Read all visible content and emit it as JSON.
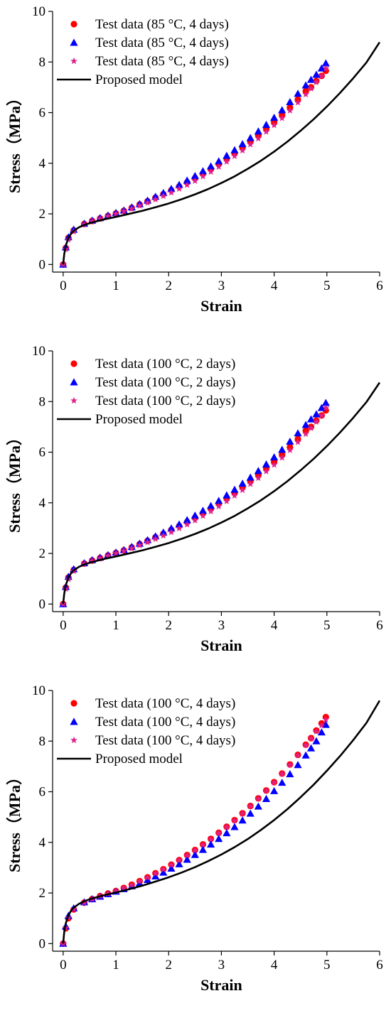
{
  "chart_data": [
    {
      "type": "scatter",
      "xlabel": "Strain",
      "ylabel": "Stress（MPa）",
      "xlim": [
        -0.2,
        6
      ],
      "ylim": [
        -0.3,
        10
      ],
      "xticks": [
        "0",
        "1",
        "2",
        "3",
        "4",
        "5",
        "6"
      ],
      "yticks": [
        "0",
        "2",
        "4",
        "6",
        "8",
        "10"
      ],
      "legend_position": "top-left",
      "series": [
        {
          "name": "Test data (85 °C, 4 days)",
          "marker": "circle",
          "color": "#ff0000",
          "x": [
            0,
            0.05,
            0.1,
            0.2,
            0.4,
            0.55,
            0.7,
            0.85,
            1.0,
            1.15,
            1.3,
            1.45,
            1.6,
            1.75,
            1.9,
            2.05,
            2.2,
            2.35,
            2.5,
            2.65,
            2.8,
            2.95,
            3.1,
            3.25,
            3.4,
            3.55,
            3.7,
            3.85,
            4.0,
            4.15,
            4.3,
            4.45,
            4.6,
            4.7,
            4.8,
            4.9,
            4.98
          ],
          "y": [
            0,
            0.65,
            1.05,
            1.35,
            1.6,
            1.72,
            1.82,
            1.92,
            2.02,
            2.12,
            2.24,
            2.37,
            2.5,
            2.64,
            2.78,
            2.93,
            3.08,
            3.24,
            3.41,
            3.59,
            3.78,
            3.98,
            4.18,
            4.4,
            4.62,
            4.86,
            5.1,
            5.36,
            5.62,
            5.9,
            6.2,
            6.52,
            6.85,
            7.0,
            7.25,
            7.45,
            7.65
          ]
        },
        {
          "name": "Test data (85 °C, 4 days)",
          "marker": "triangle",
          "color": "#0000ff",
          "x": [
            0,
            0.05,
            0.1,
            0.2,
            0.4,
            0.55,
            0.7,
            0.85,
            1.0,
            1.15,
            1.3,
            1.45,
            1.6,
            1.75,
            1.9,
            2.05,
            2.2,
            2.35,
            2.5,
            2.65,
            2.8,
            2.95,
            3.1,
            3.25,
            3.4,
            3.55,
            3.7,
            3.85,
            4.0,
            4.15,
            4.3,
            4.45,
            4.6,
            4.7,
            4.8,
            4.9,
            4.98
          ],
          "y": [
            0,
            0.68,
            1.08,
            1.38,
            1.62,
            1.74,
            1.84,
            1.94,
            2.04,
            2.14,
            2.26,
            2.39,
            2.53,
            2.68,
            2.83,
            2.99,
            3.15,
            3.32,
            3.5,
            3.69,
            3.88,
            4.08,
            4.3,
            4.52,
            4.76,
            5.0,
            5.26,
            5.52,
            5.8,
            6.1,
            6.42,
            6.75,
            7.08,
            7.3,
            7.5,
            7.75,
            7.95
          ]
        },
        {
          "name": "Test data (85 °C, 4 days)",
          "marker": "star",
          "color": "#e0208a",
          "x": [
            0,
            0.05,
            0.1,
            0.2,
            0.4,
            0.55,
            0.7,
            0.85,
            1.0,
            1.15,
            1.3,
            1.45,
            1.6,
            1.75,
            1.9,
            2.05,
            2.2,
            2.35,
            2.5,
            2.65,
            2.8,
            2.95,
            3.1,
            3.25,
            3.4,
            3.55,
            3.7,
            3.85,
            4.0,
            4.15,
            4.3,
            4.45,
            4.6,
            4.7,
            4.8,
            4.9,
            4.98
          ],
          "y": [
            0,
            0.6,
            0.98,
            1.3,
            1.58,
            1.7,
            1.8,
            1.9,
            2.0,
            2.1,
            2.2,
            2.32,
            2.44,
            2.57,
            2.7,
            2.84,
            2.99,
            3.14,
            3.3,
            3.48,
            3.66,
            3.86,
            4.06,
            4.28,
            4.5,
            4.74,
            4.98,
            5.24,
            5.5,
            5.78,
            6.08,
            6.4,
            6.72,
            6.95,
            7.2,
            7.45,
            7.75
          ]
        },
        {
          "name": "Proposed model",
          "marker": "line",
          "color": "#000000",
          "x": [
            0,
            0.02,
            0.05,
            0.1,
            0.15,
            0.2,
            0.3,
            0.4,
            0.5,
            0.75,
            1.0,
            1.25,
            1.5,
            1.75,
            2.0,
            2.25,
            2.5,
            2.75,
            3.0,
            3.25,
            3.5,
            3.75,
            4.0,
            4.25,
            4.5,
            4.75,
            5.0,
            5.25,
            5.5,
            5.75,
            6.0
          ],
          "y": [
            0,
            0.4,
            0.75,
            1.05,
            1.22,
            1.33,
            1.47,
            1.56,
            1.63,
            1.77,
            1.88,
            2.0,
            2.12,
            2.26,
            2.41,
            2.58,
            2.77,
            2.98,
            3.22,
            3.48,
            3.78,
            4.1,
            4.46,
            4.85,
            5.28,
            5.74,
            6.24,
            6.78,
            7.36,
            7.98,
            8.78
          ]
        }
      ]
    },
    {
      "type": "scatter",
      "xlabel": "Strain",
      "ylabel": "Stress（MPa）",
      "xlim": [
        -0.2,
        6
      ],
      "ylim": [
        -0.3,
        10
      ],
      "xticks": [
        "0",
        "1",
        "2",
        "3",
        "4",
        "5",
        "6"
      ],
      "yticks": [
        "0",
        "2",
        "4",
        "6",
        "8",
        "10"
      ],
      "legend_position": "top-left",
      "series": [
        {
          "name": "Test data (100 °C, 2 days)",
          "marker": "circle",
          "color": "#ff0000",
          "x": [
            0,
            0.05,
            0.1,
            0.2,
            0.4,
            0.55,
            0.7,
            0.85,
            1.0,
            1.15,
            1.3,
            1.45,
            1.6,
            1.75,
            1.9,
            2.05,
            2.2,
            2.35,
            2.5,
            2.65,
            2.8,
            2.95,
            3.1,
            3.25,
            3.4,
            3.55,
            3.7,
            3.85,
            4.0,
            4.15,
            4.3,
            4.45,
            4.6,
            4.7,
            4.8,
            4.9,
            4.98
          ],
          "y": [
            0,
            0.65,
            1.05,
            1.35,
            1.6,
            1.72,
            1.82,
            1.92,
            2.02,
            2.12,
            2.24,
            2.37,
            2.5,
            2.64,
            2.78,
            2.93,
            3.08,
            3.24,
            3.41,
            3.59,
            3.78,
            3.98,
            4.18,
            4.4,
            4.62,
            4.86,
            5.1,
            5.36,
            5.62,
            5.9,
            6.2,
            6.52,
            6.85,
            7.0,
            7.25,
            7.45,
            7.65
          ]
        },
        {
          "name": "Test data (100 °C, 2 days)",
          "marker": "triangle",
          "color": "#0000ff",
          "x": [
            0,
            0.05,
            0.1,
            0.2,
            0.4,
            0.55,
            0.7,
            0.85,
            1.0,
            1.15,
            1.3,
            1.45,
            1.6,
            1.75,
            1.9,
            2.05,
            2.2,
            2.35,
            2.5,
            2.65,
            2.8,
            2.95,
            3.1,
            3.25,
            3.4,
            3.55,
            3.7,
            3.85,
            4.0,
            4.15,
            4.3,
            4.45,
            4.6,
            4.7,
            4.8,
            4.9,
            4.98
          ],
          "y": [
            0,
            0.68,
            1.08,
            1.38,
            1.62,
            1.74,
            1.84,
            1.94,
            2.04,
            2.14,
            2.26,
            2.39,
            2.53,
            2.68,
            2.83,
            2.99,
            3.15,
            3.32,
            3.5,
            3.69,
            3.88,
            4.08,
            4.3,
            4.52,
            4.76,
            5.0,
            5.26,
            5.52,
            5.8,
            6.1,
            6.42,
            6.75,
            7.08,
            7.3,
            7.5,
            7.75,
            7.95
          ]
        },
        {
          "name": "Test data (100 °C, 2 days)",
          "marker": "star",
          "color": "#e0208a",
          "x": [
            0,
            0.05,
            0.1,
            0.2,
            0.4,
            0.55,
            0.7,
            0.85,
            1.0,
            1.15,
            1.3,
            1.45,
            1.6,
            1.75,
            1.9,
            2.05,
            2.2,
            2.35,
            2.5,
            2.65,
            2.8,
            2.95,
            3.1,
            3.25,
            3.4,
            3.55,
            3.7,
            3.85,
            4.0,
            4.15,
            4.3,
            4.45,
            4.6,
            4.7,
            4.8,
            4.9,
            4.98
          ],
          "y": [
            0,
            0.6,
            0.98,
            1.3,
            1.58,
            1.7,
            1.8,
            1.9,
            2.0,
            2.1,
            2.2,
            2.32,
            2.44,
            2.57,
            2.7,
            2.84,
            2.99,
            3.14,
            3.3,
            3.48,
            3.66,
            3.86,
            4.06,
            4.28,
            4.5,
            4.74,
            4.98,
            5.24,
            5.5,
            5.78,
            6.08,
            6.4,
            6.72,
            6.95,
            7.2,
            7.45,
            7.75
          ]
        },
        {
          "name": "Proposed model",
          "marker": "line",
          "color": "#000000",
          "x": [
            0,
            0.02,
            0.05,
            0.1,
            0.15,
            0.2,
            0.3,
            0.4,
            0.5,
            0.75,
            1.0,
            1.25,
            1.5,
            1.75,
            2.0,
            2.25,
            2.5,
            2.75,
            3.0,
            3.25,
            3.5,
            3.75,
            4.0,
            4.25,
            4.5,
            4.75,
            5.0,
            5.25,
            5.5,
            5.75,
            6.0
          ],
          "y": [
            0,
            0.4,
            0.75,
            1.05,
            1.22,
            1.33,
            1.47,
            1.56,
            1.63,
            1.77,
            1.88,
            2.0,
            2.12,
            2.26,
            2.41,
            2.58,
            2.77,
            2.98,
            3.22,
            3.48,
            3.78,
            4.1,
            4.46,
            4.85,
            5.28,
            5.74,
            6.24,
            6.78,
            7.36,
            7.98,
            8.75
          ]
        }
      ]
    },
    {
      "type": "scatter",
      "xlabel": "Strain",
      "ylabel": "Stress（MPa）",
      "xlim": [
        -0.2,
        6
      ],
      "ylim": [
        -0.3,
        10
      ],
      "xticks": [
        "0",
        "1",
        "2",
        "3",
        "4",
        "5",
        "6"
      ],
      "yticks": [
        "0",
        "2",
        "4",
        "6",
        "8",
        "10"
      ],
      "legend_position": "top-left",
      "series": [
        {
          "name": "Test data (100 °C, 4 days)",
          "marker": "circle",
          "color": "#ff0000",
          "x": [
            0,
            0.05,
            0.1,
            0.2,
            0.4,
            0.55,
            0.7,
            0.85,
            1.0,
            1.15,
            1.3,
            1.45,
            1.6,
            1.75,
            1.9,
            2.05,
            2.2,
            2.35,
            2.5,
            2.65,
            2.8,
            2.95,
            3.1,
            3.25,
            3.4,
            3.55,
            3.7,
            3.85,
            4.0,
            4.15,
            4.3,
            4.45,
            4.6,
            4.7,
            4.8,
            4.9,
            4.98
          ],
          "y": [
            0,
            0.6,
            1.0,
            1.35,
            1.62,
            1.76,
            1.88,
            1.98,
            2.08,
            2.2,
            2.33,
            2.47,
            2.62,
            2.78,
            2.94,
            3.12,
            3.3,
            3.5,
            3.7,
            3.92,
            4.14,
            4.38,
            4.62,
            4.88,
            5.15,
            5.44,
            5.74,
            6.05,
            6.38,
            6.72,
            7.08,
            7.46,
            7.86,
            8.12,
            8.42,
            8.7,
            8.95
          ]
        },
        {
          "name": "Test data (100 °C, 4 days)",
          "marker": "triangle",
          "color": "#0000ff",
          "x": [
            0,
            0.05,
            0.1,
            0.2,
            0.4,
            0.55,
            0.7,
            0.85,
            1.0,
            1.15,
            1.3,
            1.45,
            1.6,
            1.75,
            1.9,
            2.05,
            2.2,
            2.35,
            2.5,
            2.65,
            2.8,
            2.95,
            3.1,
            3.25,
            3.4,
            3.55,
            3.7,
            3.85,
            4.0,
            4.15,
            4.3,
            4.45,
            4.6,
            4.7,
            4.8,
            4.9,
            4.98
          ],
          "y": [
            0,
            0.68,
            1.1,
            1.4,
            1.64,
            1.76,
            1.86,
            1.96,
            2.06,
            2.16,
            2.27,
            2.39,
            2.52,
            2.66,
            2.81,
            2.97,
            3.14,
            3.32,
            3.51,
            3.71,
            3.92,
            4.14,
            4.37,
            4.61,
            4.87,
            5.14,
            5.42,
            5.72,
            6.03,
            6.36,
            6.7,
            7.06,
            7.44,
            7.72,
            8.0,
            8.35,
            8.65
          ]
        },
        {
          "name": "Test data (100 °C, 4 days)",
          "marker": "star",
          "color": "#e0208a",
          "x": [
            0,
            0.05,
            0.1,
            0.2,
            0.4,
            0.55,
            0.7,
            0.85,
            1.0,
            1.15,
            1.3,
            1.45,
            1.6,
            1.75,
            1.9,
            2.05,
            2.2,
            2.35,
            2.5,
            2.65,
            2.8,
            2.95,
            3.1,
            3.25,
            3.4,
            3.55,
            3.7,
            3.85,
            4.0,
            4.15,
            4.3,
            4.45,
            4.6,
            4.7,
            4.8,
            4.9,
            4.98
          ],
          "y": [
            0,
            0.62,
            1.02,
            1.36,
            1.62,
            1.75,
            1.87,
            1.97,
            2.07,
            2.19,
            2.32,
            2.46,
            2.61,
            2.77,
            2.93,
            3.11,
            3.29,
            3.48,
            3.68,
            3.9,
            4.12,
            4.36,
            4.6,
            4.86,
            5.13,
            5.42,
            5.72,
            6.03,
            6.36,
            6.7,
            7.06,
            7.44,
            7.84,
            8.1,
            8.38,
            8.62,
            8.85
          ]
        },
        {
          "name": "Proposed model",
          "marker": "line",
          "color": "#000000",
          "x": [
            0,
            0.02,
            0.05,
            0.1,
            0.15,
            0.2,
            0.3,
            0.4,
            0.5,
            0.75,
            1.0,
            1.25,
            1.5,
            1.75,
            2.0,
            2.25,
            2.5,
            2.75,
            3.0,
            3.25,
            3.5,
            3.75,
            4.0,
            4.25,
            4.5,
            4.75,
            5.0,
            5.25,
            5.5,
            5.75,
            6.0
          ],
          "y": [
            0,
            0.45,
            0.8,
            1.12,
            1.3,
            1.42,
            1.57,
            1.67,
            1.75,
            1.9,
            2.02,
            2.15,
            2.29,
            2.45,
            2.62,
            2.81,
            3.02,
            3.26,
            3.52,
            3.81,
            4.13,
            4.49,
            4.88,
            5.31,
            5.78,
            6.28,
            6.83,
            7.41,
            8.04,
            8.72,
            9.6
          ]
        }
      ]
    }
  ]
}
